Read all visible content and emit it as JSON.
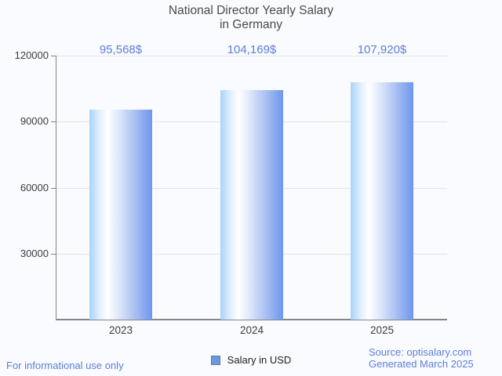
{
  "title": {
    "line1": "National Director Yearly Salary",
    "line2": "in Germany"
  },
  "chart_data": {
    "type": "bar",
    "title": "National Director Yearly Salary in Germany",
    "categories": [
      "2023",
      "2024",
      "2025"
    ],
    "values": [
      95568,
      104169,
      107920
    ],
    "value_labels": [
      "95,568$",
      "104,169$",
      "107,920$"
    ],
    "series_name": "Salary in USD",
    "xlabel": "",
    "ylabel": "",
    "ylim": [
      0,
      120000
    ],
    "yticks": [
      30000,
      60000,
      90000,
      120000
    ],
    "ytick_labels": [
      "30000",
      "60000",
      "90000",
      "120000"
    ],
    "grid": true,
    "legend_position": "bottom"
  },
  "legend": {
    "label": "Salary in USD"
  },
  "footer": {
    "left": "For informational use only",
    "source": "Source: optisalary.com",
    "generated": "Generated March 2025"
  },
  "colors": {
    "background": "#fafbff",
    "title_text": "#4a4a4a",
    "axis_label": "#3d3d3d",
    "axis_line": "#858585",
    "gridline": "#e4e4e4",
    "accent_text": "#5b7ed9",
    "bar_left": "#a8d3fb",
    "bar_mid": "#ffffff",
    "bar_right": "#6d96ee",
    "legend_swatch": "#6699e8",
    "legend_swatch_border": "#757575",
    "legend_text": "#1f1f1f"
  }
}
